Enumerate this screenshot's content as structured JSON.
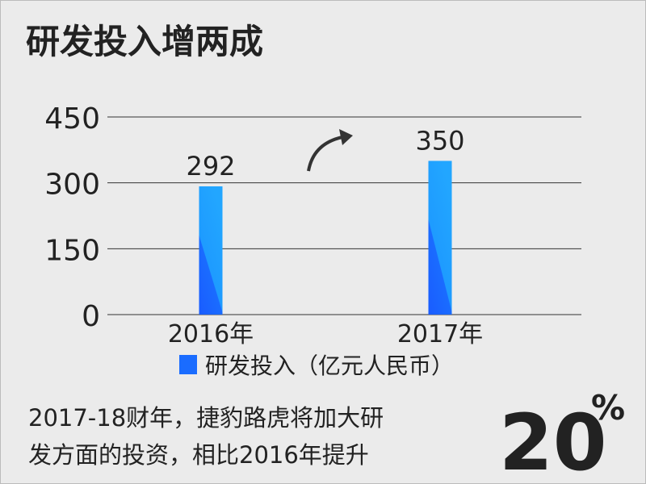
{
  "chart_data": {
    "type": "bar",
    "title": "研发投入增两成",
    "categories": [
      "2016年",
      "2017年"
    ],
    "series": [
      {
        "name": "研发投入（亿元人民币）",
        "color": "#1a6cff",
        "values": [
          292,
          350
        ]
      }
    ],
    "ylim": [
      0,
      450
    ],
    "yticks": [
      0,
      150,
      300,
      450
    ],
    "grid": true,
    "caption": [
      "2017-18财年，捷豹路虎将加大研",
      "发方面的投资，相比2016年提升"
    ],
    "highlight": {
      "number": "20",
      "unit": "%"
    }
  }
}
